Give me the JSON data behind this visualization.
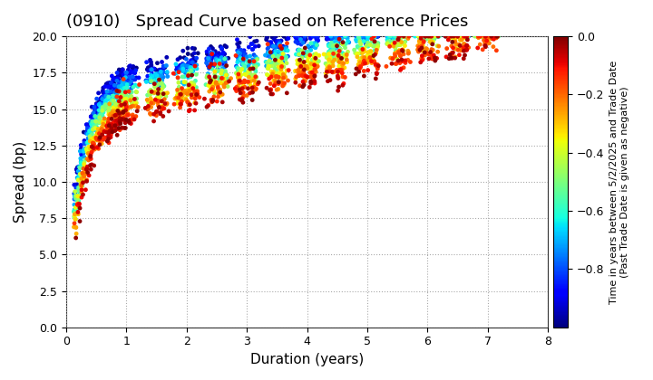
{
  "title": "(0910)   Spread Curve based on Reference Prices",
  "xlabel": "Duration (years)",
  "ylabel": "Spread (bp)",
  "colorbar_label_line1": "Time in years between 5/2/2025 and Trade Date",
  "colorbar_label_line2": "(Past Trade Date is given as negative)",
  "xlim": [
    0,
    8
  ],
  "ylim": [
    0.0,
    20.0
  ],
  "yticks": [
    0.0,
    2.5,
    5.0,
    7.5,
    10.0,
    12.5,
    15.0,
    17.5,
    20.0
  ],
  "xticks": [
    0,
    1,
    2,
    3,
    4,
    5,
    6,
    7,
    8
  ],
  "cmap": "jet",
  "vmin": -1.0,
  "vmax": 0.0,
  "colorbar_ticks": [
    0.0,
    -0.2,
    -0.4,
    -0.6,
    -0.8
  ],
  "marker_size": 12,
  "grid_color": "#aaaaaa",
  "grid_linestyle": "dotted",
  "bg_color": "#ffffff",
  "title_fontsize": 13,
  "axis_fontsize": 11,
  "colorbar_fontsize": 8,
  "tick_fontsize": 9,
  "seed": 123
}
